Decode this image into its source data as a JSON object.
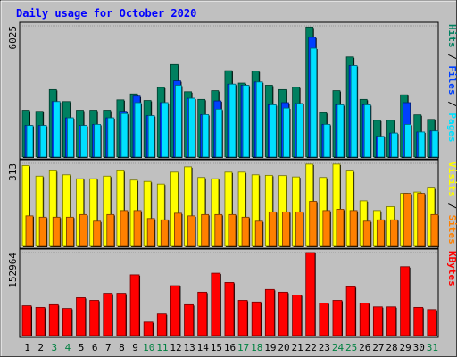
{
  "chart_data": {
    "type": "bar",
    "title": "Daily usage for October 2020",
    "categories": [
      "1",
      "2",
      "3",
      "4",
      "5",
      "6",
      "7",
      "8",
      "9",
      "10",
      "11",
      "12",
      "13",
      "14",
      "15",
      "16",
      "17",
      "18",
      "19",
      "20",
      "21",
      "22",
      "23",
      "24",
      "25",
      "26",
      "27",
      "28",
      "29",
      "30",
      "31"
    ],
    "weekend_days": [
      "3",
      "4",
      "10",
      "11",
      "17",
      "18",
      "24",
      "25",
      "31"
    ],
    "colors": {
      "title": "#0000ff",
      "background": "#c0c0c0",
      "weekday_label": "#000000",
      "weekend_label": "#008040",
      "hits": "#008060",
      "files": "#0040ff",
      "pages": "#00e0ff",
      "visits": "#ffff00",
      "sites": "#ff8000",
      "kbytes": "#ff0000"
    },
    "panels": [
      {
        "id": "hits-files-pages",
        "max_label": "6025",
        "ylim": [
          0,
          6025
        ],
        "legend": [
          "Pages",
          "/",
          "Files",
          "/",
          "Hits"
        ],
        "series": [
          {
            "name": "Hits",
            "values": [
              2150,
              2100,
              3100,
              2550,
              2150,
              2150,
              2150,
              2630,
              2900,
              2600,
              3200,
              4250,
              3000,
              2650,
              3050,
              3970,
              3400,
              3950,
              3300,
              3100,
              3210,
              5970,
              2040,
              3050,
              4600,
              2650,
              1690,
              1690,
              2860,
              1940,
              1730
            ]
          },
          {
            "name": "Files",
            "values": [
              1450,
              1450,
              2550,
              1800,
              1450,
              1500,
              1800,
              2100,
              2800,
              1900,
              2500,
              3500,
              2700,
              1950,
              2580,
              3350,
              3300,
              3450,
              2400,
              2500,
              2460,
              5500,
              1500,
              2400,
              4200,
              2400,
              950,
              1100,
              2500,
              1150,
              1200
            ]
          },
          {
            "name": "Pages",
            "values": [
              1450,
              1450,
              2550,
              1800,
              1450,
              1500,
              1800,
              2000,
              2500,
              1900,
              2500,
              3300,
              2700,
              1950,
              2200,
              3350,
              3300,
              3450,
              2400,
              2250,
              2460,
              5000,
              1500,
              2400,
              4200,
              2400,
              950,
              1100,
              1500,
              1150,
              1200
            ]
          }
        ]
      },
      {
        "id": "visits-sites",
        "max_label": "313",
        "ylim": [
          0,
          313
        ],
        "legend": [
          "Sites",
          "/",
          "Visits"
        ],
        "series": [
          {
            "name": "Visits",
            "values": [
              305,
              265,
              285,
              270,
              255,
              255,
              265,
              285,
              250,
              245,
              235,
              280,
              300,
              260,
              255,
              280,
              280,
              270,
              268,
              267,
              262,
              310,
              260,
              310,
              284,
              172,
              135,
              150,
              200,
              205,
              220
            ]
          },
          {
            "name": "Sites",
            "values": [
              115,
              110,
              110,
              110,
              120,
              95,
              120,
              135,
              135,
              105,
              100,
              125,
              115,
              120,
              120,
              120,
              110,
              95,
              130,
              130,
              130,
              170,
              135,
              140,
              135,
              95,
              100,
              100,
              200,
              200,
              120
            ]
          }
        ]
      },
      {
        "id": "kbytes",
        "max_label": "152964",
        "ylim": [
          0,
          152964
        ],
        "legend": [
          "KBytes"
        ],
        "series": [
          {
            "name": "KBytes",
            "values": [
              55000,
              52000,
              57000,
              50000,
              70000,
              65000,
              78000,
              78000,
              112000,
              25000,
              40000,
              92000,
              57000,
              80000,
              115000,
              98000,
              65000,
              62000,
              85000,
              80000,
              75000,
              155000,
              60000,
              65000,
              90000,
              60000,
              53000,
              53000,
              127000,
              52000,
              48000
            ]
          }
        ]
      }
    ]
  }
}
